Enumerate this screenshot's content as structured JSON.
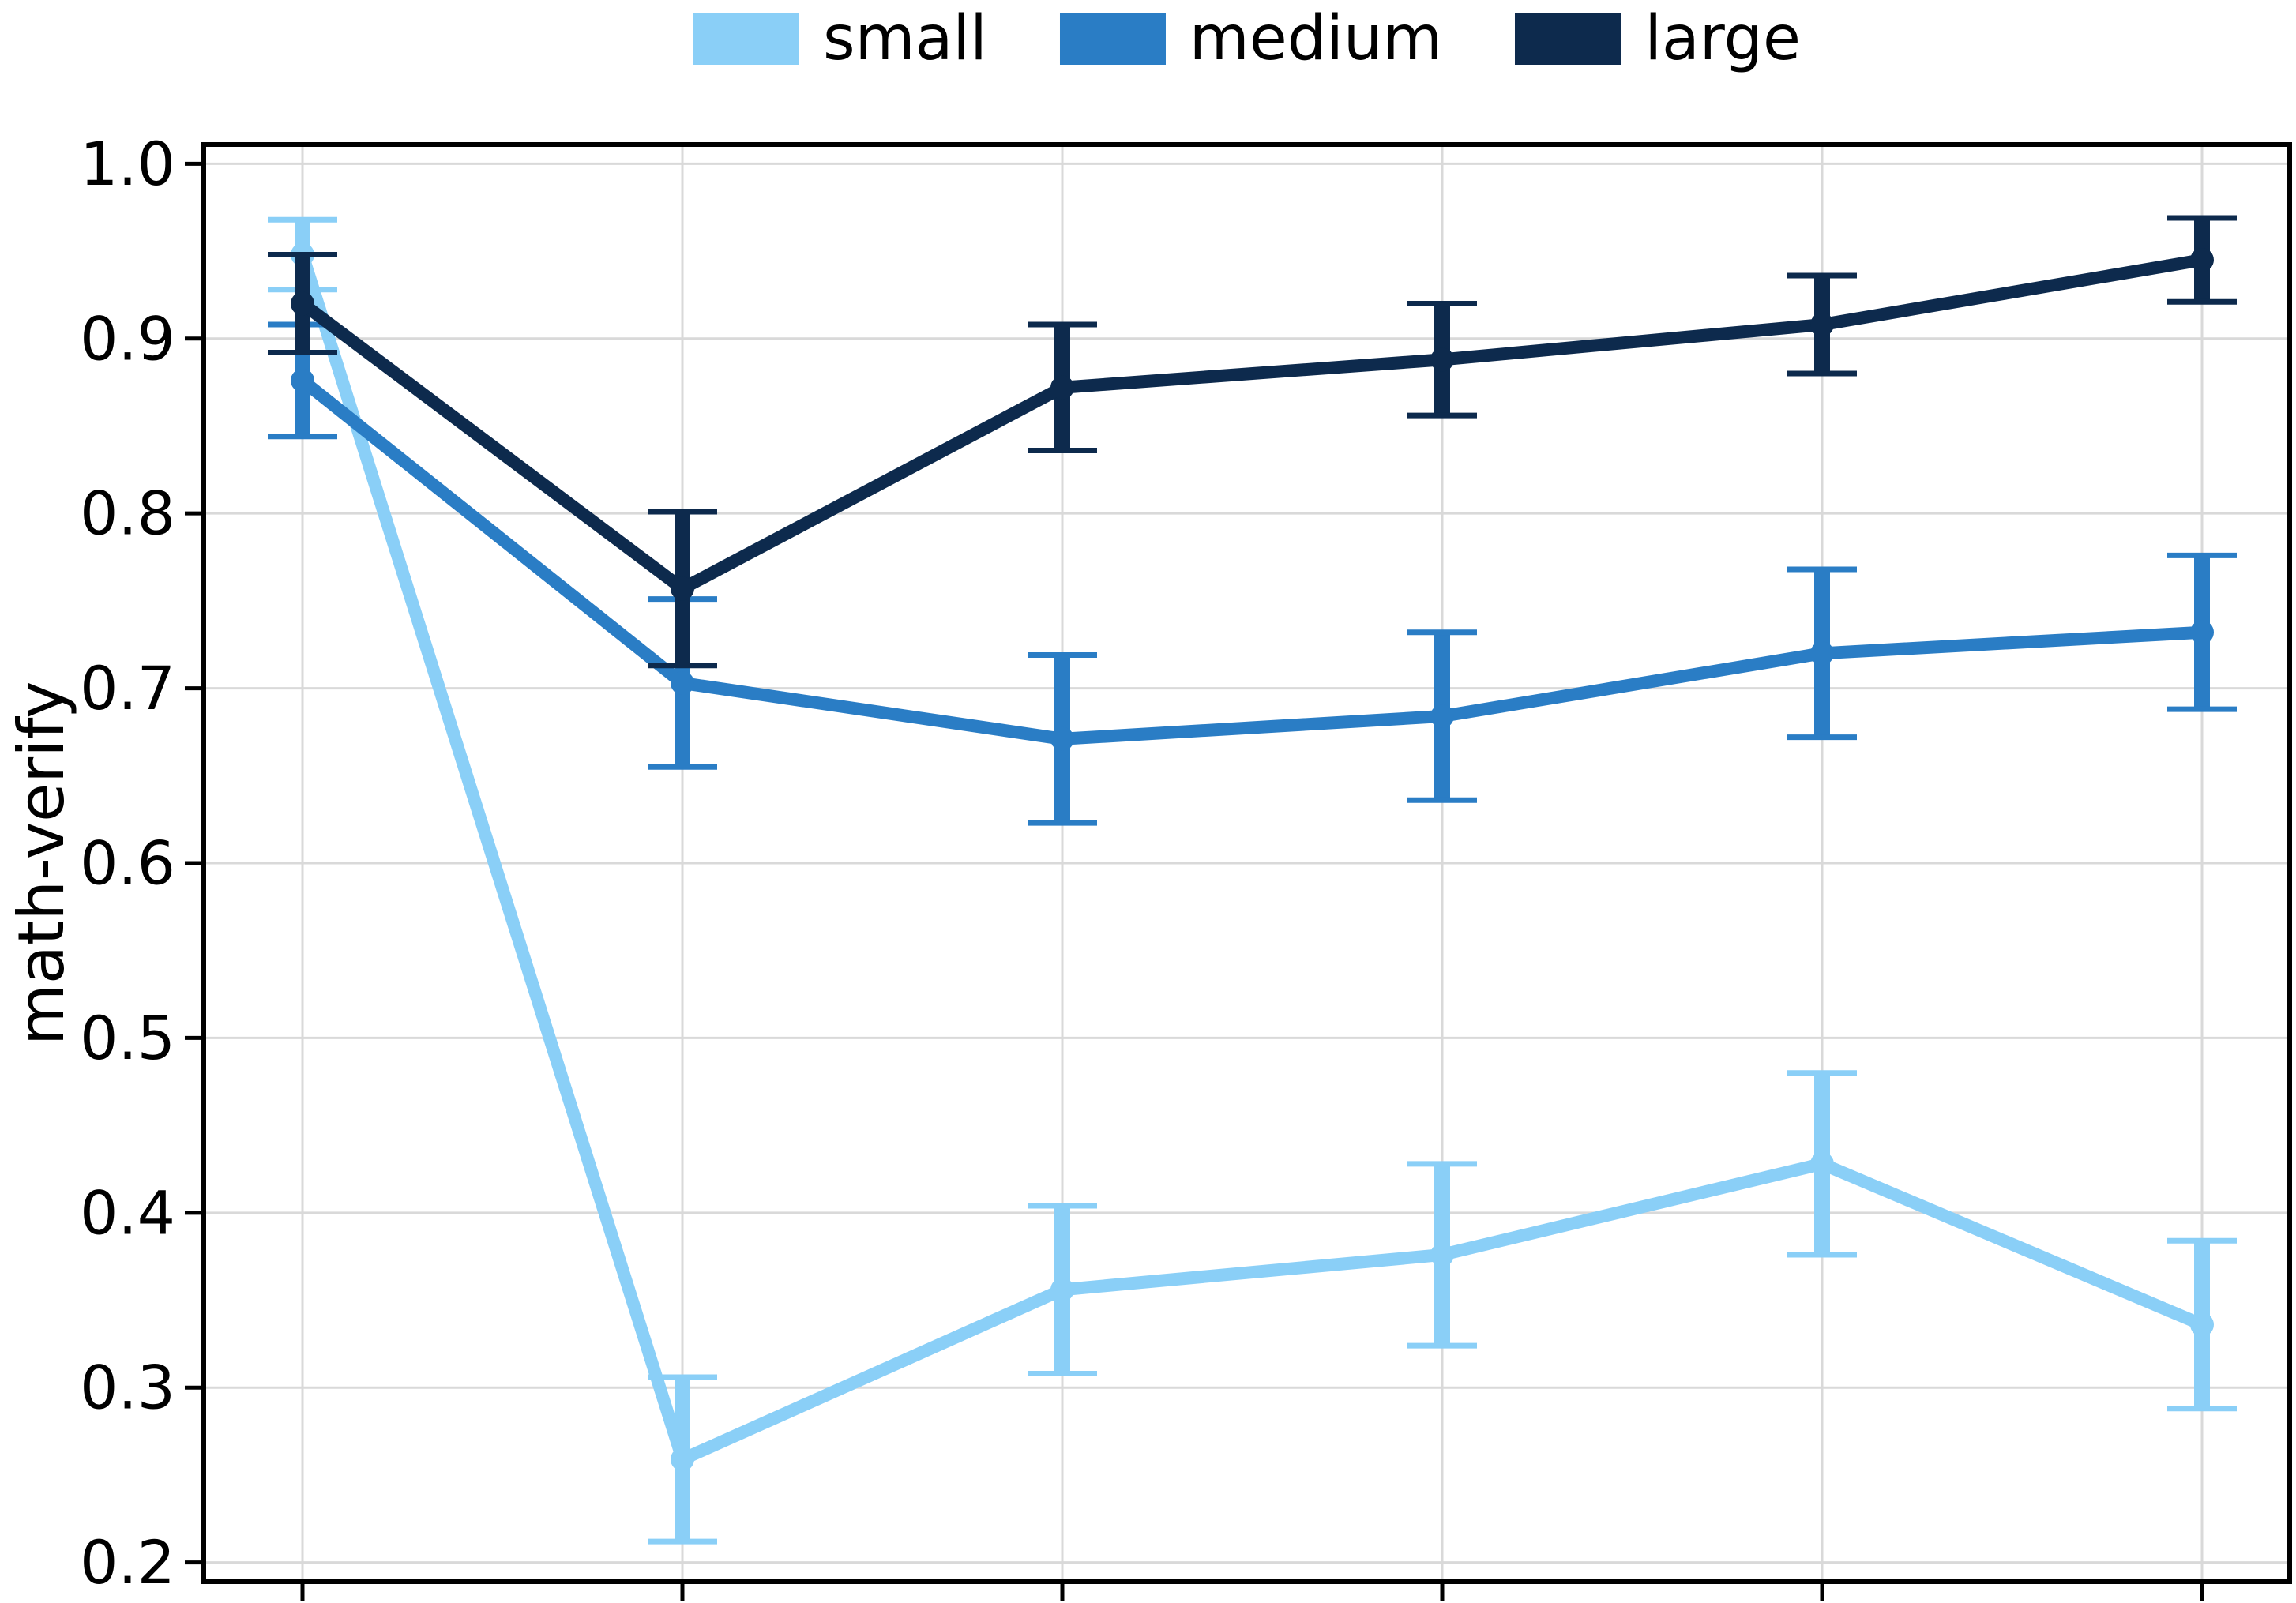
{
  "figure": {
    "background": "#ffffff",
    "ylabel": "math-verify"
  },
  "legend": {
    "position": "top-center",
    "items": [
      {
        "label": "small",
        "color": "#8ACFF7"
      },
      {
        "label": "medium",
        "color": "#2A7DC5"
      },
      {
        "label": "large",
        "color": "#0D2A4D"
      }
    ]
  },
  "chart_data": {
    "type": "line",
    "title": "",
    "xlabel": "",
    "ylabel": "math-verify",
    "x": [
      1,
      2,
      3,
      4,
      5,
      6
    ],
    "x_tick_labels": [
      "",
      "",
      "",
      "",
      "",
      ""
    ],
    "series": [
      {
        "name": "small",
        "color": "#8ACFF7",
        "values": [
          0.948,
          0.259,
          0.356,
          0.376,
          0.428,
          0.336
        ],
        "errors": [
          0.02,
          0.047,
          0.048,
          0.052,
          0.052,
          0.048
        ]
      },
      {
        "name": "medium",
        "color": "#2A7DC5",
        "values": [
          0.876,
          0.703,
          0.671,
          0.684,
          0.72,
          0.732
        ],
        "errors": [
          0.032,
          0.048,
          0.048,
          0.048,
          0.048,
          0.044
        ]
      },
      {
        "name": "large",
        "color": "#0D2A4D",
        "values": [
          0.92,
          0.757,
          0.872,
          0.888,
          0.908,
          0.945
        ],
        "errors": [
          0.028,
          0.044,
          0.036,
          0.032,
          0.028,
          0.024
        ]
      }
    ],
    "ylim": [
      0.189,
      1.011
    ],
    "yticks": [
      0.2,
      0.3,
      0.4,
      0.5,
      0.6,
      0.7,
      0.8,
      0.9,
      1.0
    ],
    "ytick_labels": [
      "0.2",
      "0.3",
      "0.4",
      "0.5",
      "0.6",
      "0.7",
      "0.8",
      "0.9",
      "1.0"
    ],
    "grid": true,
    "grid_color": "#D9D9D9",
    "error_bars": true,
    "markers": "circle",
    "legend_position": "top-center"
  }
}
